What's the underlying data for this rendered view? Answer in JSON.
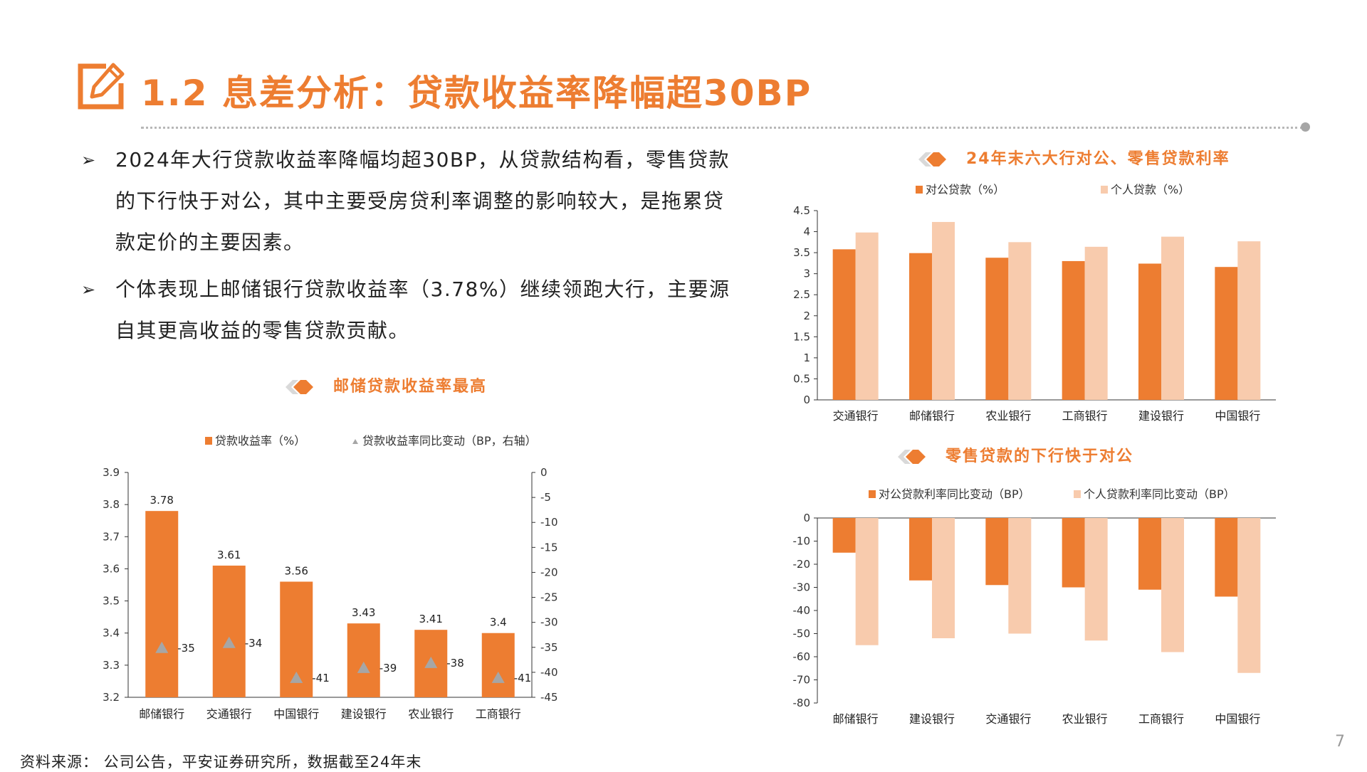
{
  "header": {
    "title": "1.2 息差分析：贷款收益率降幅超30BP"
  },
  "bullets": [
    "2024年大行贷款收益率降幅均超30BP，从贷款结构看，零售贷款的下行快于对公，其中主要受房贷利率调整的影响较大，是拖累贷款定价的主要因素。",
    "个体表现上邮储银行贷款收益率（3.78%）继续领跑大行，主要源自其更高收益的零售贷款贡献。"
  ],
  "colors": {
    "accent": "#ED7D31",
    "light": "#F8CBAD",
    "marker": "#A6A6A6"
  },
  "chart_data": [
    {
      "type": "bar",
      "title": "邮储贷款收益率最高",
      "categories": [
        "邮储银行",
        "交通银行",
        "中国银行",
        "建设银行",
        "农业银行",
        "工商银行"
      ],
      "series": [
        {
          "name": "贷款收益率（%）",
          "values": [
            3.78,
            3.61,
            3.56,
            3.43,
            3.41,
            3.4
          ],
          "axis": "left",
          "labels": [
            "3.78",
            "3.61",
            "3.56",
            "3.43",
            "3.41",
            "3.4"
          ]
        },
        {
          "name": "贷款收益率同比变动（BP，右轴）",
          "values": [
            -35,
            -34,
            -41,
            -39,
            -38,
            -41
          ],
          "axis": "right",
          "mark": "triangle",
          "labels": [
            "-35",
            "-34",
            "-41",
            "-39",
            "-38",
            "-41"
          ]
        }
      ],
      "ylim": [
        3.2,
        3.9
      ],
      "yticks": [
        "3.2",
        "3.3",
        "3.4",
        "3.5",
        "3.6",
        "3.7",
        "3.8",
        "3.9"
      ],
      "y2lim": [
        -45,
        0
      ],
      "y2ticks": [
        "-45",
        "-40",
        "-35",
        "-30",
        "-25",
        "-20",
        "-15",
        "-10",
        "-5",
        "0"
      ],
      "legend": "top"
    },
    {
      "type": "bar",
      "title": "24年末六大行对公、零售贷款利率",
      "categories": [
        "交通银行",
        "邮储银行",
        "农业银行",
        "工商银行",
        "建设银行",
        "中国银行"
      ],
      "series": [
        {
          "name": "对公贷款（%）",
          "values": [
            3.58,
            3.49,
            3.38,
            3.3,
            3.24,
            3.16
          ]
        },
        {
          "name": "个人贷款（%）",
          "values": [
            3.98,
            4.23,
            3.75,
            3.64,
            3.88,
            3.77
          ]
        }
      ],
      "ylim": [
        0,
        4.5
      ],
      "yticks": [
        "0",
        "0.5",
        "1",
        "1.5",
        "2",
        "2.5",
        "3",
        "3.5",
        "4",
        "4.5"
      ],
      "legend": "top"
    },
    {
      "type": "bar",
      "title": "零售贷款的下行快于对公",
      "categories": [
        "邮储银行",
        "建设银行",
        "交通银行",
        "农业银行",
        "工商银行",
        "中国银行"
      ],
      "series": [
        {
          "name": "对公贷款利率同比变动（BP）",
          "values": [
            -15,
            -27,
            -29,
            -30,
            -31,
            -34
          ]
        },
        {
          "name": "个人贷款利率同比变动（BP）",
          "values": [
            -55,
            -52,
            -50,
            -53,
            -58,
            -67
          ]
        }
      ],
      "ylim": [
        -80,
        0
      ],
      "yticks": [
        "-80",
        "-70",
        "-60",
        "-50",
        "-40",
        "-30",
        "-20",
        "-10",
        "0"
      ],
      "legend": "top"
    }
  ],
  "footer": {
    "source": "资料来源：  公司公告，平安证券研究所，数据截至24年末",
    "page": "7"
  }
}
